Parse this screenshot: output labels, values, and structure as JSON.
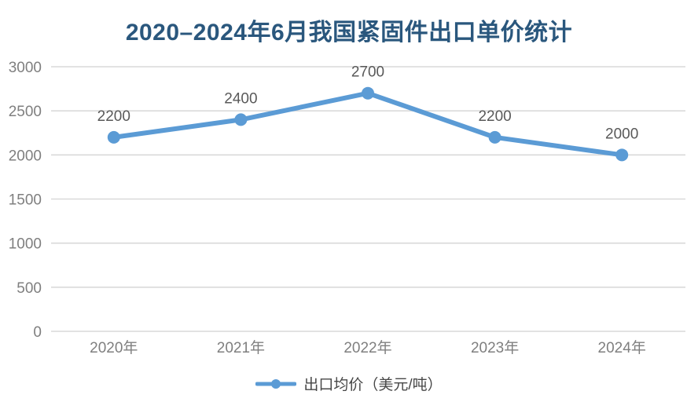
{
  "title": "2020–2024年6月我国紧固件出口单价统计",
  "colors": {
    "title": "#2A577D",
    "line": "#5B9BD5",
    "marker": "#5B9BD5",
    "gridline": "#D9D9D9",
    "axis_label": "#7F7F7F",
    "data_label": "#595959",
    "background": "#FFFFFF"
  },
  "chart_data": {
    "type": "line",
    "title": "2020–2024年6月我国紧固件出口单价统计",
    "categories": [
      "2020年",
      "2021年",
      "2022年",
      "2023年",
      "2024年"
    ],
    "series": [
      {
        "name": "出口均价（美元/吨）",
        "values": [
          2200,
          2400,
          2700,
          2200,
          2000
        ]
      }
    ],
    "xlabel": "",
    "ylabel": "",
    "ylim": [
      0,
      3000
    ],
    "yticks": [
      0,
      500,
      1000,
      1500,
      2000,
      2500,
      3000
    ],
    "grid": "horizontal",
    "data_labels": true,
    "legend_position": "bottom"
  },
  "legend": {
    "label": "出口均价（美元/吨）"
  }
}
